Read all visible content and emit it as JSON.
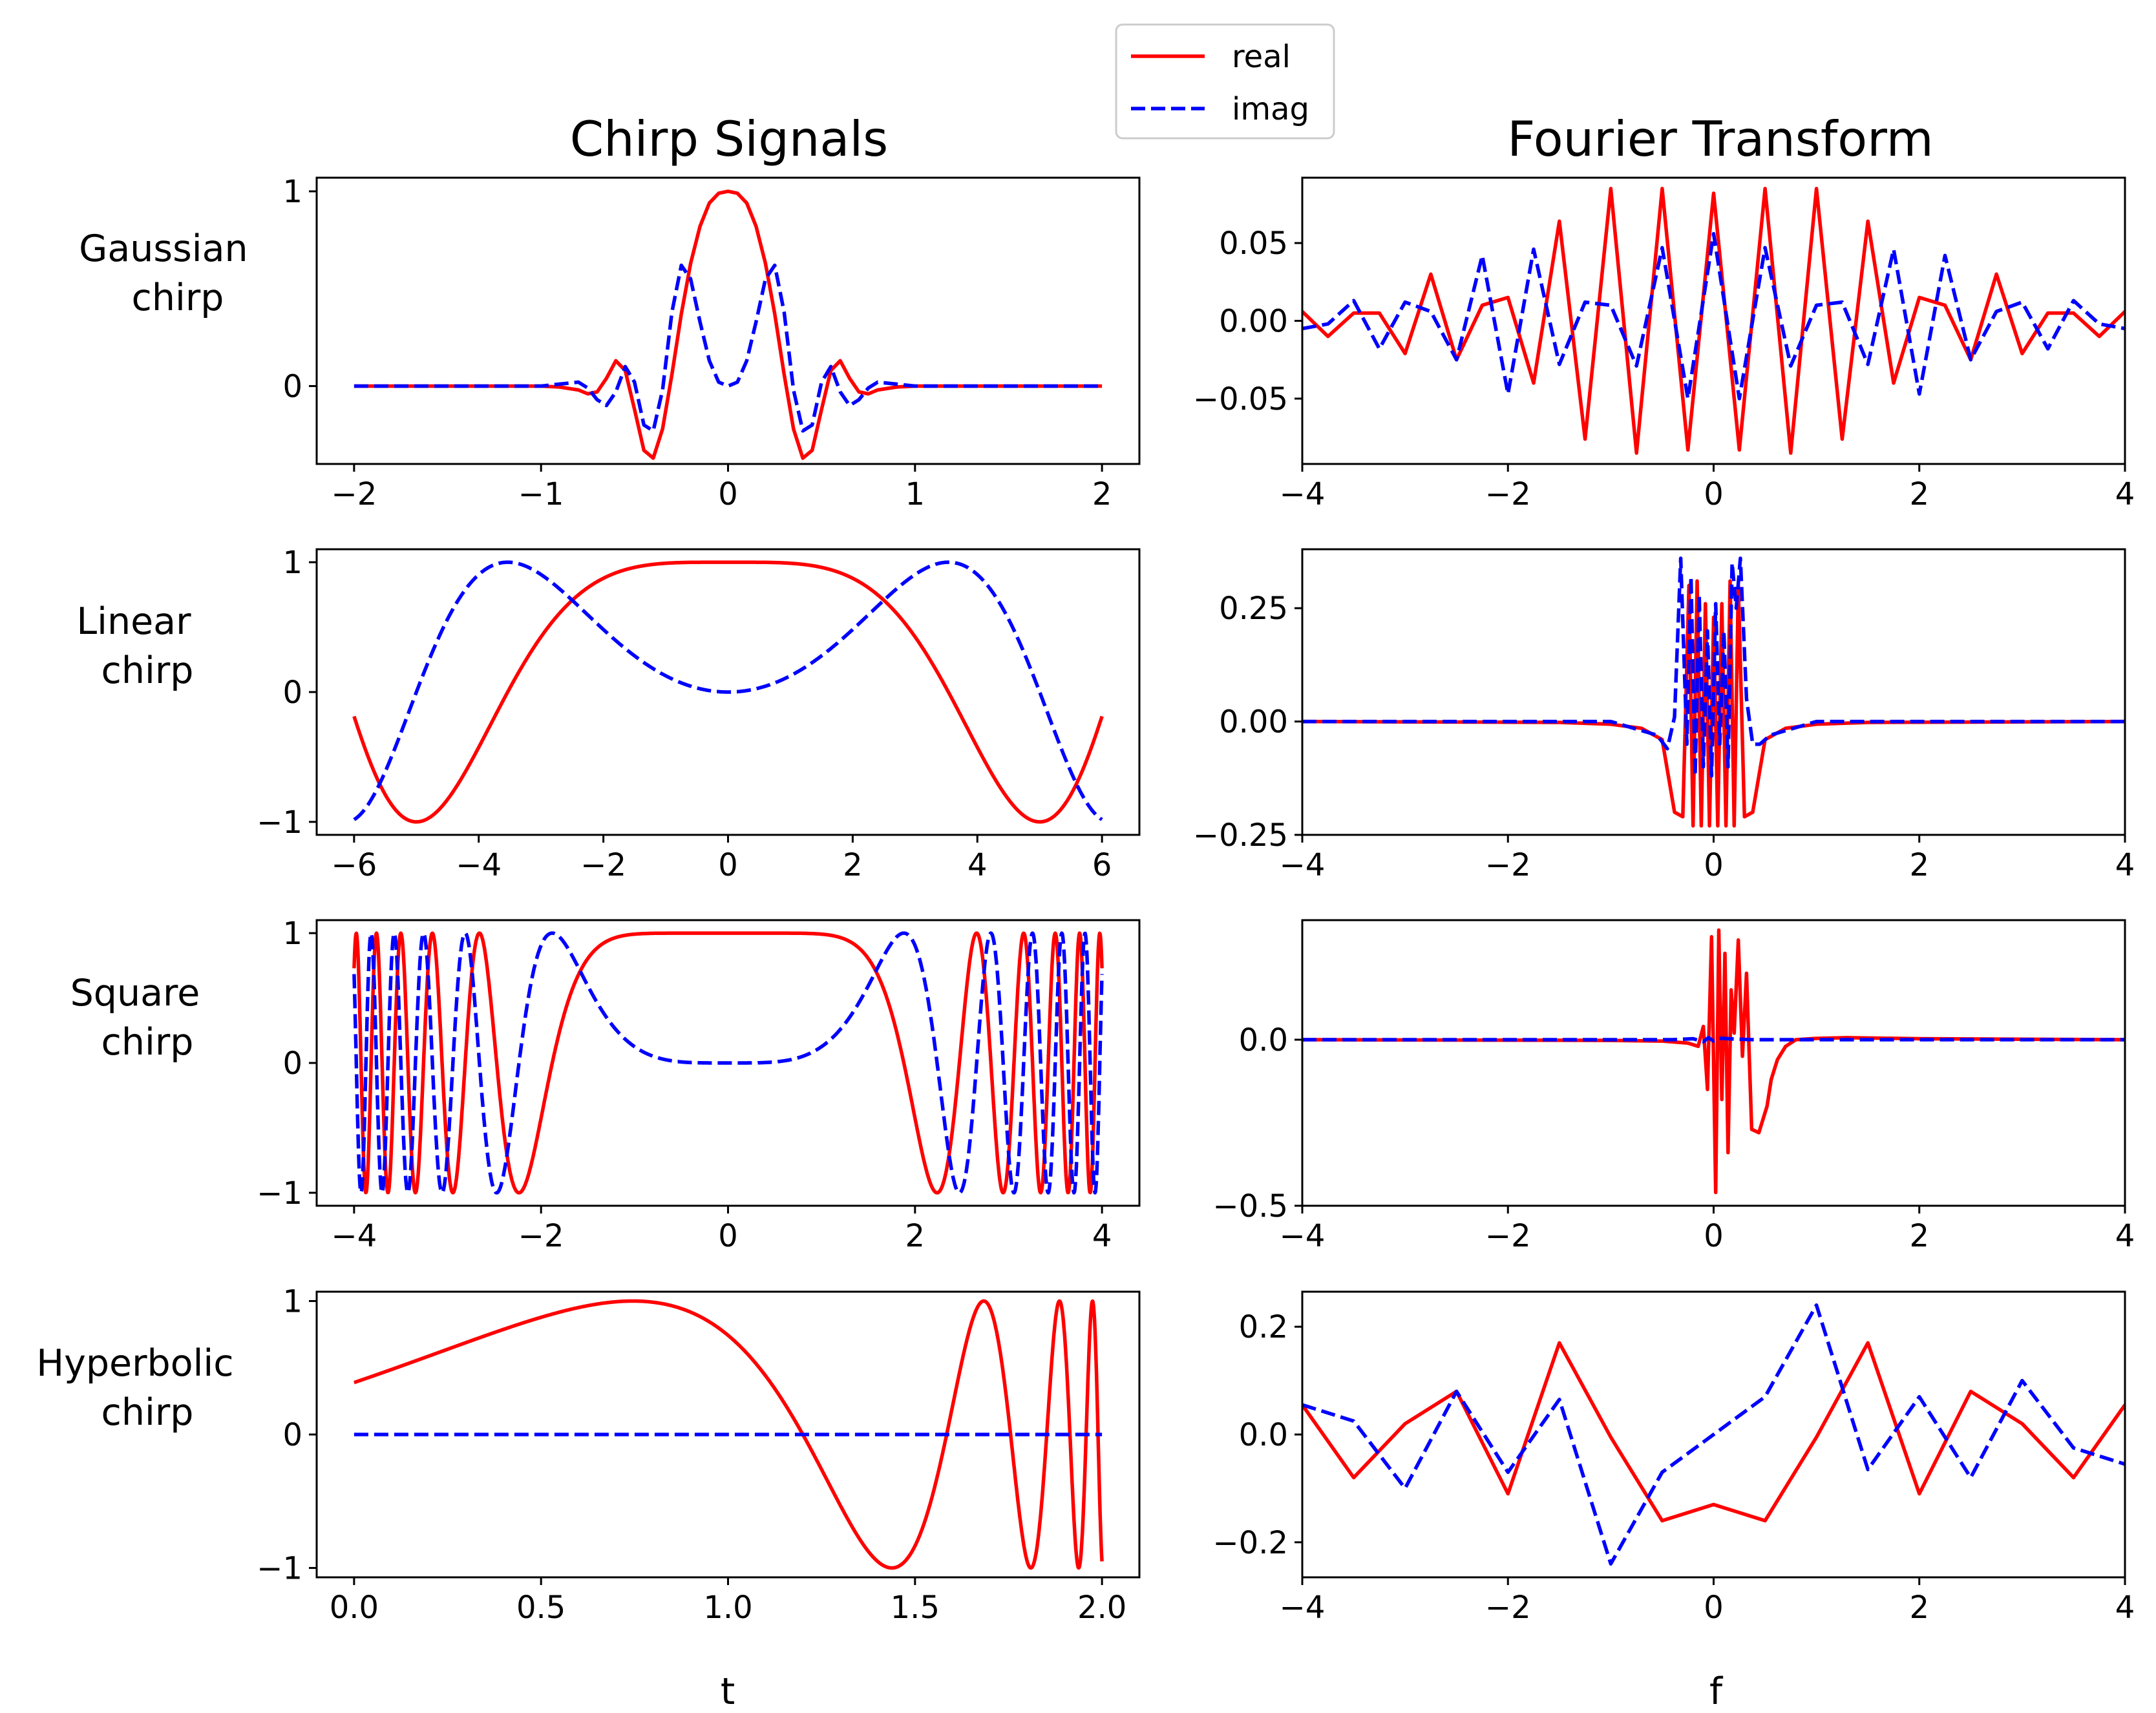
{
  "titles": {
    "left": "Chirp Signals",
    "right": "Fourier Transform"
  },
  "row_labels": [
    {
      "line1": "Gaussian",
      "line2": "chirp"
    },
    {
      "line1": "Linear",
      "line2": "chirp"
    },
    {
      "line1": "Square",
      "line2": "chirp"
    },
    {
      "line1": "Hyperbolic",
      "line2": "chirp"
    }
  ],
  "xlabels": {
    "left": "t",
    "right": "f"
  },
  "legend": {
    "placement": "top-center",
    "entries": [
      {
        "label": "real",
        "color": "#ff0000",
        "style": "solid"
      },
      {
        "label": "imag",
        "color": "#0000ff",
        "style": "dashed"
      }
    ]
  },
  "colors": {
    "real": "#ff0000",
    "imag": "#0000ff"
  },
  "chart_data": [
    {
      "type": "line",
      "row": 0,
      "col": 0,
      "xlim": [
        -2.2,
        2.2
      ],
      "ylim": [
        -0.4,
        1.07
      ],
      "xticks": [
        -2,
        -1,
        0,
        1,
        2
      ],
      "yticks": [
        0,
        1
      ],
      "xtick_labels": [
        "−2",
        "−1",
        "0",
        "1",
        "2"
      ],
      "ytick_labels": [
        "0",
        "1"
      ],
      "series": [
        {
          "name": "real",
          "x": [
            -2,
            -1.0,
            -0.9,
            -0.8,
            -0.75,
            -0.7,
            -0.65,
            -0.6,
            -0.55,
            -0.5,
            -0.45,
            -0.4,
            -0.35,
            -0.3,
            -0.25,
            -0.2,
            -0.15,
            -0.1,
            -0.05,
            0,
            0.05,
            0.1,
            0.15,
            0.2,
            0.25,
            0.3,
            0.35,
            0.4,
            0.45,
            0.5,
            0.55,
            0.6,
            0.65,
            0.7,
            0.75,
            0.8,
            0.9,
            1.0,
            2
          ],
          "y": [
            0,
            0,
            -0.005,
            -0.02,
            -0.04,
            -0.03,
            0.04,
            0.13,
            0.08,
            -0.12,
            -0.33,
            -0.37,
            -0.22,
            0.06,
            0.37,
            0.63,
            0.82,
            0.94,
            0.99,
            1,
            0.99,
            0.94,
            0.82,
            0.63,
            0.37,
            0.06,
            -0.22,
            -0.37,
            -0.33,
            -0.12,
            0.08,
            0.13,
            0.04,
            -0.03,
            -0.04,
            -0.02,
            -0.005,
            0,
            0
          ]
        },
        {
          "name": "imag",
          "x": [
            -2,
            -1.0,
            -0.9,
            -0.8,
            -0.75,
            -0.7,
            -0.65,
            -0.6,
            -0.55,
            -0.5,
            -0.45,
            -0.4,
            -0.35,
            -0.3,
            -0.25,
            -0.2,
            -0.15,
            -0.1,
            -0.05,
            0,
            0.05,
            0.1,
            0.15,
            0.2,
            0.25,
            0.3,
            0.35,
            0.4,
            0.45,
            0.5,
            0.55,
            0.6,
            0.65,
            0.7,
            0.75,
            0.8,
            0.9,
            1.0,
            2
          ],
          "y": [
            0,
            0,
            0.01,
            0.02,
            -0.01,
            -0.07,
            -0.1,
            -0.03,
            0.1,
            0.02,
            -0.2,
            -0.23,
            -0.02,
            0.38,
            0.62,
            0.55,
            0.33,
            0.13,
            0.02,
            0,
            0.02,
            0.13,
            0.33,
            0.55,
            0.62,
            0.38,
            -0.02,
            -0.23,
            -0.2,
            0.02,
            0.1,
            -0.03,
            -0.1,
            -0.07,
            -0.01,
            0.02,
            0.01,
            0,
            0
          ]
        }
      ]
    },
    {
      "type": "line",
      "row": 0,
      "col": 1,
      "xlim": [
        -4,
        4
      ],
      "ylim": [
        -0.092,
        0.092
      ],
      "xticks": [
        -4,
        -2,
        0,
        2,
        4
      ],
      "yticks": [
        -0.05,
        0,
        0.05
      ],
      "xtick_labels": [
        "−4",
        "−2",
        "0",
        "2",
        "4"
      ],
      "ytick_labels": [
        "−0.05",
        "0.00",
        "0.05"
      ],
      "series": [
        {
          "name": "real",
          "x": [
            -4,
            -3.75,
            -3.5,
            -3.25,
            -3,
            -2.75,
            -2.5,
            -2.25,
            -2,
            -1.75,
            -1.5,
            -1.25,
            -1,
            -0.75,
            -0.5,
            -0.25,
            0,
            0.25,
            0.5,
            0.75,
            1,
            1.25,
            1.5,
            1.75,
            2,
            2.25,
            2.5,
            2.75,
            3,
            3.25,
            3.5,
            3.75,
            4
          ],
          "y": [
            0.006,
            -0.01,
            0.005,
            0.005,
            -0.021,
            0.03,
            -0.025,
            0.01,
            0.015,
            -0.04,
            0.064,
            -0.076,
            0.085,
            -0.085,
            0.085,
            -0.083,
            0.082,
            -0.083,
            0.085,
            -0.085,
            0.085,
            -0.076,
            0.064,
            -0.04,
            0.015,
            0.01,
            -0.025,
            0.03,
            -0.021,
            0.005,
            0.005,
            -0.01,
            0.006
          ]
        },
        {
          "name": "imag",
          "x": [
            -4,
            -3.75,
            -3.5,
            -3.25,
            -3,
            -2.75,
            -2.5,
            -2.25,
            -2,
            -1.75,
            -1.5,
            -1.25,
            -1,
            -0.75,
            -0.5,
            -0.25,
            0,
            0.25,
            0.5,
            0.75,
            1,
            1.25,
            1.5,
            1.75,
            2,
            2.25,
            2.5,
            2.75,
            3,
            3.25,
            3.5,
            3.75,
            4
          ],
          "y": [
            -0.005,
            -0.002,
            0.013,
            -0.018,
            0.012,
            0.006,
            -0.025,
            0.042,
            -0.047,
            0.046,
            -0.028,
            0.012,
            0.01,
            -0.029,
            0.047,
            -0.05,
            0.056,
            -0.05,
            0.047,
            -0.029,
            0.01,
            0.012,
            -0.028,
            0.046,
            -0.047,
            0.042,
            -0.025,
            0.006,
            0.012,
            -0.018,
            0.013,
            -0.002,
            -0.005
          ]
        }
      ]
    },
    {
      "type": "line",
      "row": 1,
      "col": 0,
      "xlim": [
        -6.6,
        6.6
      ],
      "ylim": [
        -1.1,
        1.1
      ],
      "xticks": [
        -6,
        -4,
        -2,
        0,
        2,
        4,
        6
      ],
      "yticks": [
        -1,
        0,
        1
      ],
      "xtick_labels": [
        "−6",
        "−4",
        "−2",
        "0",
        "2",
        "4",
        "6"
      ],
      "ytick_labels": [
        "−1",
        "0",
        "1"
      ],
      "series": [
        {
          "name": "real",
          "formula": "cos(pi*t*t/25)",
          "domain": [
            -6,
            6
          ]
        },
        {
          "name": "imag",
          "formula": "sin(pi*t*t/25)",
          "domain": [
            -6,
            6
          ]
        }
      ]
    },
    {
      "type": "line",
      "row": 1,
      "col": 1,
      "xlim": [
        -4,
        4
      ],
      "ylim": [
        -0.25,
        0.38
      ],
      "xticks": [
        -4,
        -2,
        0,
        2,
        4
      ],
      "yticks": [
        -0.25,
        0,
        0.25
      ],
      "xtick_labels": [
        "−4",
        "−2",
        "0",
        "2",
        "4"
      ],
      "ytick_labels": [
        "−0.25",
        "0.00",
        "0.25"
      ],
      "series": [
        {
          "name": "real",
          "x": [
            -4,
            -1.5,
            -1,
            -0.7,
            -0.5,
            -0.38,
            -0.3,
            -0.24,
            -0.2,
            -0.16,
            -0.12,
            -0.08,
            -0.04,
            0,
            0.04,
            0.08,
            0.12,
            0.16,
            0.2,
            0.24,
            0.3,
            0.38,
            0.5,
            0.7,
            1,
            1.5,
            4
          ],
          "y": [
            0,
            -0.002,
            -0.006,
            -0.015,
            -0.04,
            -0.2,
            -0.21,
            0.3,
            -0.23,
            0.31,
            -0.23,
            0.26,
            -0.23,
            0.23,
            -0.23,
            0.26,
            -0.23,
            0.31,
            -0.23,
            0.3,
            -0.21,
            -0.2,
            -0.04,
            -0.015,
            -0.006,
            -0.002,
            0
          ]
        },
        {
          "name": "imag",
          "x": [
            -4,
            -1,
            -0.55,
            -0.45,
            -0.38,
            -0.32,
            -0.26,
            -0.22,
            -0.18,
            -0.14,
            -0.1,
            -0.06,
            -0.02,
            0.02,
            0.06,
            0.1,
            0.14,
            0.18,
            0.22,
            0.26,
            0.32,
            0.38,
            0.45,
            0.55,
            1,
            4
          ],
          "y": [
            0,
            0,
            -0.03,
            -0.06,
            0.01,
            0.36,
            -0.05,
            0.32,
            -0.12,
            0.28,
            -0.1,
            0.2,
            -0.12,
            0.26,
            -0.05,
            0.2,
            -0.1,
            0.35,
            0.25,
            0.36,
            0.05,
            -0.05,
            -0.05,
            -0.03,
            0,
            0
          ]
        }
      ]
    },
    {
      "type": "line",
      "row": 2,
      "col": 0,
      "xlim": [
        -4.4,
        4.4
      ],
      "ylim": [
        -1.1,
        1.1
      ],
      "xticks": [
        -4,
        -2,
        0,
        2,
        4
      ],
      "yticks": [
        -1,
        0,
        1
      ],
      "xtick_labels": [
        "−4",
        "−2",
        "0",
        "2",
        "4"
      ],
      "ytick_labels": [
        "−1",
        "0",
        "1"
      ],
      "series": [
        {
          "name": "real",
          "formula": "cos(pi*t^4/25)",
          "domain": [
            -4,
            4
          ]
        },
        {
          "name": "imag",
          "formula": "sin(pi*t^4/25)",
          "domain": [
            -4,
            4
          ]
        }
      ]
    },
    {
      "type": "line",
      "row": 2,
      "col": 1,
      "xlim": [
        -4,
        4
      ],
      "ylim": [
        -0.5,
        0.36
      ],
      "xticks": [
        -4,
        -2,
        0,
        2,
        4
      ],
      "yticks": [
        -0.5,
        0
      ],
      "xtick_labels": [
        "−4",
        "−2",
        "0",
        "2",
        "4"
      ],
      "ytick_labels": [
        "−0.5",
        "0.0"
      ],
      "series": [
        {
          "name": "real",
          "x": [
            -4,
            -1,
            -0.5,
            -0.25,
            -0.15,
            -0.1,
            -0.06,
            -0.02,
            0.02,
            0.05,
            0.08,
            0.11,
            0.14,
            0.17,
            0.2,
            0.24,
            0.28,
            0.32,
            0.37,
            0.44,
            0.52,
            0.56,
            0.62,
            0.7,
            0.8,
            1,
            1.3,
            2,
            4
          ],
          "y": [
            0,
            -0.002,
            -0.004,
            -0.01,
            -0.02,
            0.04,
            -0.15,
            0.31,
            -0.46,
            0.33,
            -0.18,
            0.26,
            -0.34,
            0.15,
            0.02,
            0.3,
            -0.05,
            0.2,
            -0.27,
            -0.28,
            -0.2,
            -0.12,
            -0.06,
            -0.02,
            0,
            0.004,
            0.006,
            0.003,
            0
          ]
        },
        {
          "name": "imag",
          "x": [
            -4,
            -0.4,
            -0.2,
            -0.1,
            -0.05,
            0,
            0.05,
            0.1,
            0.2,
            0.4,
            4
          ],
          "y": [
            0,
            0,
            0.003,
            -0.006,
            0.006,
            -0.004,
            0.004,
            0.004,
            0.002,
            0.0,
            0
          ]
        }
      ]
    },
    {
      "type": "line",
      "row": 3,
      "col": 0,
      "xlim": [
        -0.1,
        2.1
      ],
      "ylim": [
        -1.07,
        1.07
      ],
      "xticks": [
        0,
        0.5,
        1.0,
        1.5,
        2.0
      ],
      "yticks": [
        -1,
        0,
        1
      ],
      "xtick_labels": [
        "0.0",
        "0.5",
        "1.0",
        "1.5",
        "2.0"
      ],
      "ytick_labels": [
        "−1",
        "0",
        "1"
      ],
      "series": [
        {
          "name": "real",
          "formula": "cos(pi*(1.6/(2.2-t) - 1.1))",
          "domain": [
            0,
            2
          ]
        },
        {
          "name": "imag",
          "formula": "0",
          "domain": [
            0,
            2
          ]
        }
      ]
    },
    {
      "type": "line",
      "row": 3,
      "col": 1,
      "xlim": [
        -4,
        4
      ],
      "ylim": [
        -0.265,
        0.265
      ],
      "xticks": [
        -4,
        -2,
        0,
        2,
        4
      ],
      "yticks": [
        -0.2,
        0,
        0.2
      ],
      "xtick_labels": [
        "−4",
        "−2",
        "0",
        "2",
        "4"
      ],
      "ytick_labels": [
        "−0.2",
        "0.0",
        "0.2"
      ],
      "series": [
        {
          "name": "real",
          "x": [
            -4,
            -3.5,
            -3,
            -2.5,
            -2,
            -1.5,
            -1,
            -0.5,
            0,
            0.5,
            1,
            1.5,
            2,
            2.5,
            3,
            3.5,
            4
          ],
          "y": [
            0.055,
            -0.08,
            0.02,
            0.08,
            -0.11,
            0.17,
            -0.005,
            -0.16,
            -0.13,
            -0.16,
            -0.005,
            0.17,
            -0.11,
            0.08,
            0.02,
            -0.08,
            0.055
          ]
        },
        {
          "name": "imag",
          "x": [
            -4,
            -3.5,
            -3,
            -2.5,
            -2,
            -1.5,
            -1,
            -0.5,
            0,
            0.5,
            1,
            1.5,
            2,
            2.5,
            3,
            3.5,
            4
          ],
          "y": [
            0.055,
            0.025,
            -0.1,
            0.08,
            -0.07,
            0.065,
            -0.24,
            -0.07,
            0.0,
            0.07,
            0.24,
            -0.065,
            0.07,
            -0.08,
            0.1,
            -0.025,
            -0.055
          ]
        }
      ]
    }
  ]
}
